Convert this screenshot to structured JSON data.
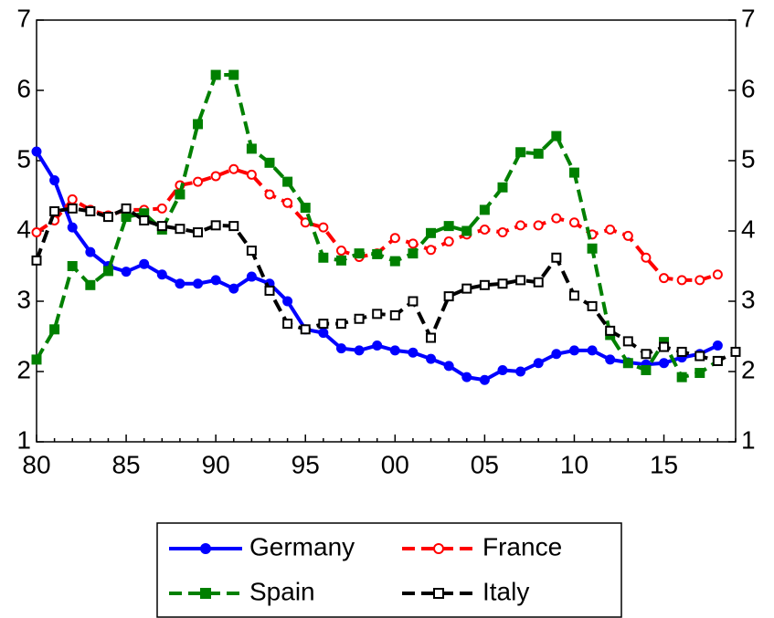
{
  "chart_data": {
    "type": "line",
    "categories": [
      "80",
      null,
      null,
      null,
      null,
      "85",
      null,
      null,
      null,
      null,
      "90",
      null,
      null,
      null,
      null,
      "95",
      null,
      null,
      null,
      null,
      "00",
      null,
      null,
      null,
      null,
      "05",
      null,
      null,
      null,
      null,
      "10",
      null,
      null,
      null,
      null,
      "15",
      null,
      null,
      null,
      null
    ],
    "series": [
      {
        "name": "Germany",
        "color": "#0000ff",
        "marker": "circle",
        "dash": false,
        "values": [
          5.13,
          4.72,
          4.05,
          3.7,
          3.5,
          3.42,
          3.53,
          3.38,
          3.25,
          3.25,
          3.3,
          3.18,
          3.35,
          3.25,
          3.0,
          2.6,
          2.55,
          2.33,
          2.3,
          2.37,
          2.3,
          2.27,
          2.18,
          2.08,
          1.92,
          1.88,
          2.02,
          2.0,
          2.12,
          2.25,
          2.3,
          2.3,
          2.17,
          2.13,
          2.1,
          2.12,
          2.2,
          2.25,
          2.37,
          null
        ]
      },
      {
        "name": "France",
        "color": "#ff0000",
        "marker": "open-circle",
        "dash": true,
        "values": [
          3.98,
          4.15,
          4.45,
          4.3,
          4.22,
          4.3,
          4.3,
          4.32,
          4.65,
          4.7,
          4.78,
          4.88,
          4.8,
          4.52,
          4.4,
          4.12,
          4.05,
          3.72,
          3.63,
          3.68,
          3.9,
          3.82,
          3.73,
          3.85,
          3.95,
          4.02,
          3.98,
          4.08,
          4.08,
          4.18,
          4.12,
          3.95,
          4.02,
          3.93,
          3.62,
          3.33,
          3.3,
          3.3,
          3.38,
          null
        ]
      },
      {
        "name": "Spain",
        "color": "#008000",
        "marker": "square",
        "dash": true,
        "values": [
          2.17,
          2.6,
          3.5,
          3.23,
          3.43,
          4.2,
          4.25,
          4.02,
          4.52,
          5.52,
          6.22,
          6.22,
          5.17,
          4.97,
          4.7,
          4.33,
          3.62,
          3.58,
          3.68,
          3.67,
          3.57,
          3.68,
          3.97,
          4.07,
          4.0,
          4.3,
          4.62,
          5.12,
          5.1,
          5.35,
          4.83,
          3.75,
          2.52,
          2.12,
          2.02,
          2.42,
          1.92,
          1.98,
          2.15,
          null
        ]
      },
      {
        "name": "Italy",
        "color": "#000000",
        "marker": "open-square",
        "dash": true,
        "values": [
          3.58,
          4.28,
          4.32,
          4.28,
          4.2,
          4.32,
          4.15,
          4.07,
          4.03,
          3.98,
          4.08,
          4.07,
          3.72,
          3.15,
          2.68,
          2.6,
          2.68,
          2.68,
          2.75,
          2.82,
          2.8,
          3.0,
          2.48,
          3.07,
          3.18,
          3.23,
          3.25,
          3.3,
          3.27,
          3.62,
          3.08,
          2.93,
          2.58,
          2.43,
          2.25,
          2.35,
          2.28,
          2.22,
          2.15,
          2.28
        ]
      }
    ],
    "ylim": [
      1,
      7
    ],
    "yticks": [
      1,
      2,
      3,
      4,
      5,
      6,
      7
    ],
    "grid": false
  }
}
